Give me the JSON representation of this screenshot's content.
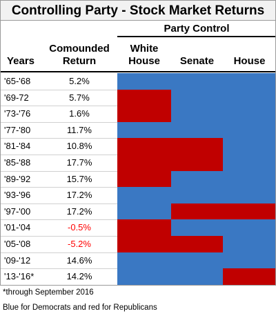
{
  "title": "Controlling Party - Stock Market Returns",
  "group_header": "Party Control",
  "columns": [
    "Years",
    "Comounded Return",
    "White House",
    "Senate",
    "House"
  ],
  "rows": [
    {
      "years": "'65-'68",
      "return": "5.2%",
      "colors": [
        "#3a78c3",
        "#3a78c3",
        "#3a78c3"
      ]
    },
    {
      "years": "'69-72",
      "return": "5.7%",
      "colors": [
        "#c00000",
        "#3a78c3",
        "#3a78c3"
      ]
    },
    {
      "years": "'73-'76",
      "return": "1.6%",
      "colors": [
        "#c00000",
        "#3a78c3",
        "#3a78c3"
      ]
    },
    {
      "years": "'77-'80",
      "return": "11.7%",
      "colors": [
        "#3a78c3",
        "#3a78c3",
        "#3a78c3"
      ]
    },
    {
      "years": "'81-'84",
      "return": "10.8%",
      "colors": [
        "#c00000",
        "#c00000",
        "#3a78c3"
      ]
    },
    {
      "years": "'85-'88",
      "return": "17.7%",
      "colors": [
        "#c00000",
        "#c00000",
        "#3a78c3"
      ]
    },
    {
      "years": "'89-'92",
      "return": "15.7%",
      "colors": [
        "#c00000",
        "#3a78c3",
        "#3a78c3"
      ]
    },
    {
      "years": "'93-'96",
      "return": "17.2%",
      "colors": [
        "#3a78c3",
        "#3a78c3",
        "#3a78c3"
      ]
    },
    {
      "years": "'97-'00",
      "return": "17.2%",
      "colors": [
        "#3a78c3",
        "#c00000",
        "#c00000"
      ]
    },
    {
      "years": "'01-'04",
      "return": "-0.5%",
      "colors": [
        "#c00000",
        "#3a78c3",
        "#3a78c3"
      ],
      "return_color": "#ff0000"
    },
    {
      "years": "'05-'08",
      "return": "-5.2%",
      "colors": [
        "#c00000",
        "#c00000",
        "#3a78c3"
      ],
      "return_color": "#ff0000"
    },
    {
      "years": "'09-'12",
      "return": "14.6%",
      "colors": [
        "#3a78c3",
        "#3a78c3",
        "#3a78c3"
      ]
    },
    {
      "years": "'13-'16*",
      "return": "14.2%",
      "colors": [
        "#3a78c3",
        "#3a78c3",
        "#c00000"
      ]
    }
  ],
  "notes": [
    "*through September 2016",
    "Blue for Democrats and red for Republicans"
  ]
}
